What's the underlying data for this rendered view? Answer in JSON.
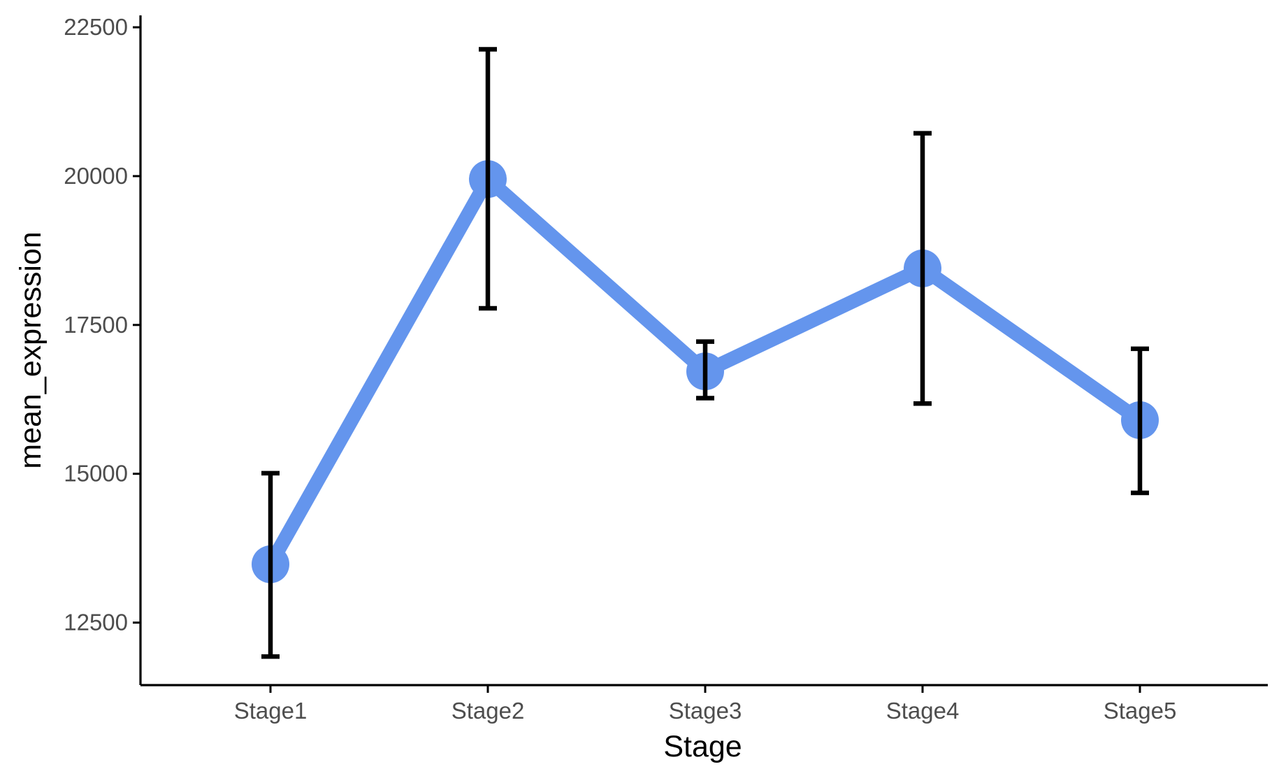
{
  "chart_data": {
    "type": "line",
    "title": "",
    "xlabel": "Stage",
    "ylabel": "mean_expression",
    "categories": [
      "Stage1",
      "Stage2",
      "Stage3",
      "Stage4",
      "Stage5"
    ],
    "series": [
      {
        "values": [
          13480,
          19950,
          16720,
          18450,
          15900
        ],
        "error_low": [
          11930,
          17780,
          16270,
          16180,
          14680
        ],
        "error_high": [
          15010,
          22130,
          17220,
          20720,
          17100
        ]
      }
    ],
    "y_ticks": [
      12500,
      15000,
      17500,
      20000,
      22500
    ],
    "y_tick_labels": [
      "12500",
      "15000",
      "17500",
      "20000",
      22500
    ],
    "ylim": [
      11450,
      22700
    ],
    "grid": false,
    "legend": "none",
    "colors": {
      "line": "#6495ed",
      "error_bar": "#000000",
      "axis": "#000000",
      "tick_label": "#4d4d4d"
    }
  }
}
